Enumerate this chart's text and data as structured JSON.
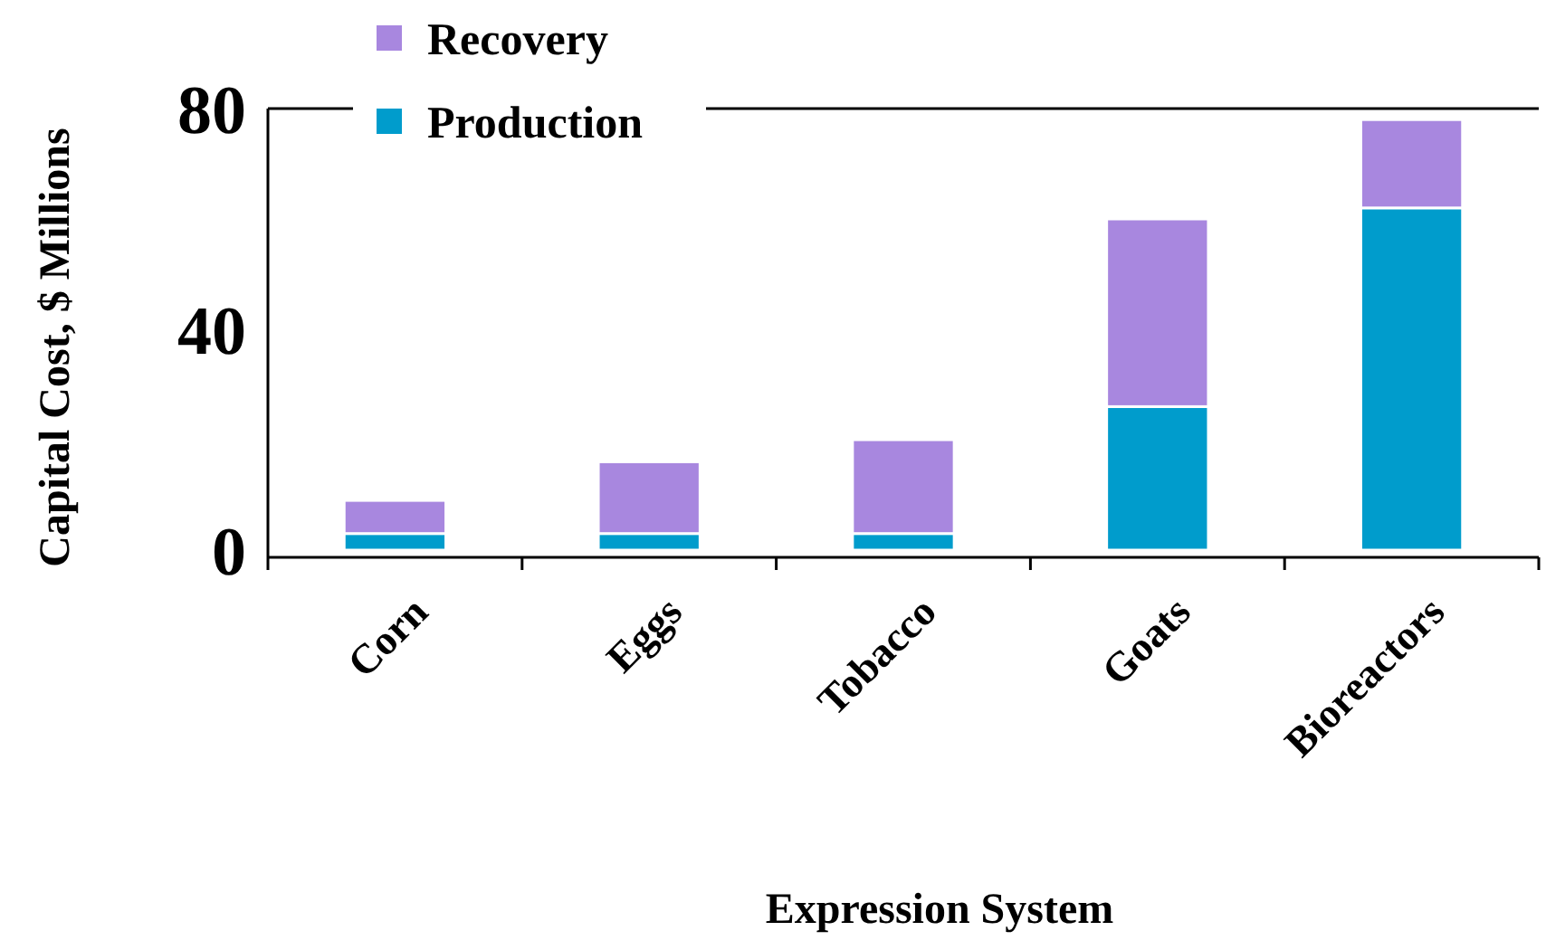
{
  "chart_data": {
    "type": "bar",
    "stacked": true,
    "xlabel": "Expression System",
    "ylabel": "Capital Cost, $ Millions",
    "categories": [
      "Corn",
      "Eggs",
      "Tobacco",
      "Goats",
      "Bioreactors"
    ],
    "series": [
      {
        "name": "Production",
        "color": "#009ccc",
        "values": [
          3,
          3,
          3,
          26,
          62
        ]
      },
      {
        "name": "Recovery",
        "color": "#a887df",
        "values": [
          6,
          13,
          17,
          34,
          16
        ]
      }
    ],
    "ylim": [
      0,
      80
    ],
    "yticks": [
      0,
      40,
      80
    ],
    "legend": "top left"
  }
}
